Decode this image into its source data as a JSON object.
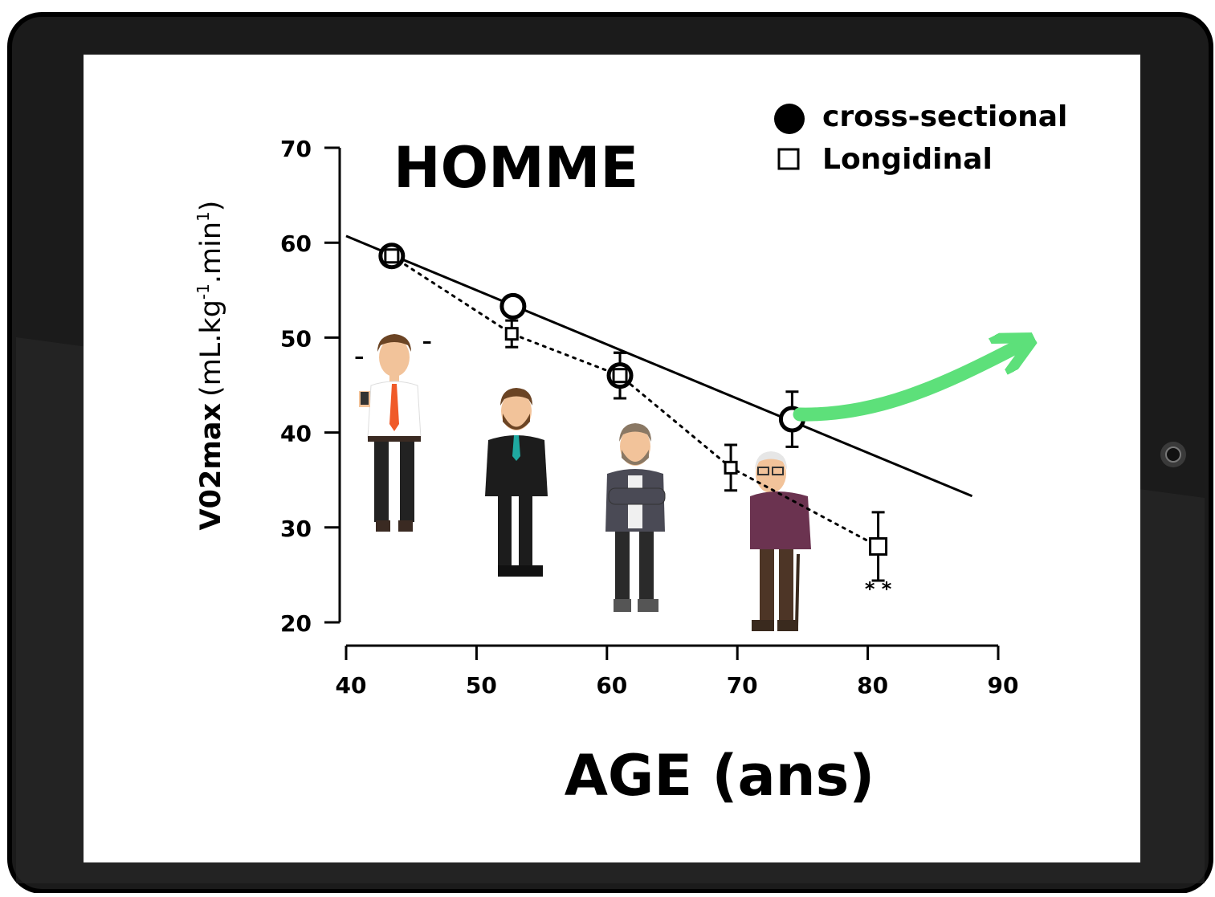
{
  "colors": {
    "tablet_body": "#1b1b1b",
    "screen": "#ffffff",
    "ink": "#000000",
    "trend_arrow": "#5de07a"
  },
  "chart_data": {
    "type": "scatter",
    "title": "HOMME",
    "xlabel": "AGE (ans)",
    "ylabel": {
      "main": "V02max",
      "units_open": "(mL.kg",
      "sup1": "-1",
      "units_mid": ".min",
      "sup2": "1",
      "units_close": ")"
    },
    "xlim": [
      40,
      90
    ],
    "ylim": [
      20,
      70
    ],
    "x_ticks": [
      40,
      50,
      60,
      70,
      80,
      90
    ],
    "y_ticks": [
      20,
      30,
      40,
      50,
      60,
      70
    ],
    "legend": {
      "position": "top-right",
      "items": [
        {
          "label": "cross-sectional",
          "marker": "filled-circle"
        },
        {
          "label": "Longidinal",
          "marker": "open-square"
        }
      ]
    },
    "series": [
      {
        "name": "cross-sectional",
        "marker": "circle",
        "points": [
          {
            "x": 43.5,
            "y": 58.6,
            "err": 0
          },
          {
            "x": 52.8,
            "y": 53.3,
            "err": 0
          },
          {
            "x": 61.0,
            "y": 46.0,
            "err": 2.4
          },
          {
            "x": 74.2,
            "y": 41.4,
            "err": 2.9
          }
        ],
        "regression": {
          "x": [
            40,
            88
          ],
          "y": [
            60.7,
            33.3
          ]
        }
      },
      {
        "name": "Longidinal",
        "marker": "square",
        "points": [
          {
            "x": 43.5,
            "y": 58.6,
            "err": 0
          },
          {
            "x": 52.7,
            "y": 50.4,
            "err": 1.4
          },
          {
            "x": 61.0,
            "y": 46.0,
            "err": 2.4
          },
          {
            "x": 69.5,
            "y": 36.3,
            "err": 2.4
          },
          {
            "x": 80.8,
            "y": 28.0,
            "err": 3.6
          }
        ]
      }
    ],
    "annotations": [
      {
        "text": "* *",
        "x": 80.8,
        "y": 23.5
      },
      {
        "text": "–",
        "x": 41.0,
        "y": 48.0
      },
      {
        "text": "–",
        "x": 46.2,
        "y": 49.6
      }
    ]
  }
}
